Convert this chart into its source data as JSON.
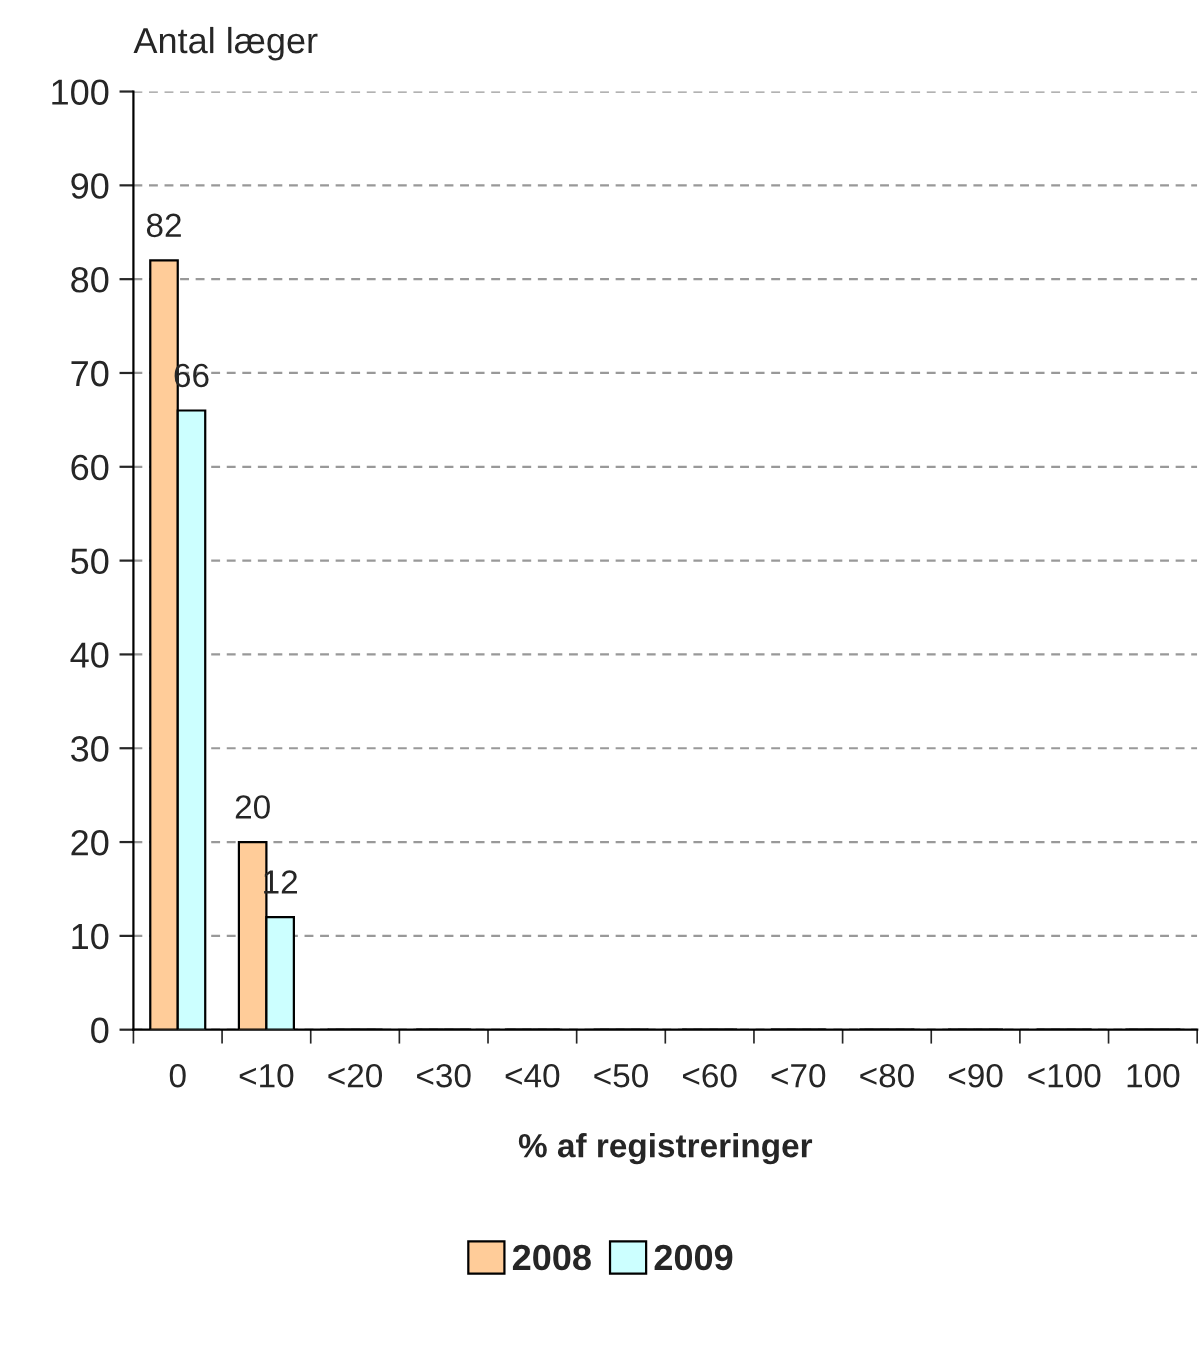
{
  "chart_data": {
    "type": "bar",
    "ylabel": "Antal læger",
    "xlabel": "% af registreringer",
    "categories": [
      "0",
      "<10",
      "<20",
      "<30",
      "<40",
      "<50",
      "<60",
      "<70",
      "<80",
      "<90",
      "<100",
      "100"
    ],
    "series": [
      {
        "name": "2008",
        "color": "#ffcc99",
        "values": [
          82,
          20,
          0,
          0,
          0,
          0,
          0,
          0,
          0,
          0,
          0,
          0
        ],
        "value_labels": [
          "82",
          "20",
          null,
          null,
          null,
          null,
          null,
          null,
          null,
          null,
          null,
          null
        ]
      },
      {
        "name": "2009",
        "color": "#ccffff",
        "values": [
          66,
          12,
          0,
          0,
          0,
          0,
          0,
          0,
          0,
          0,
          0,
          0
        ],
        "value_labels": [
          "66",
          "12",
          null,
          null,
          null,
          null,
          null,
          null,
          null,
          null,
          null,
          null
        ]
      }
    ],
    "ylim": [
      0,
      100
    ],
    "yticks": [
      0,
      10,
      20,
      30,
      40,
      50,
      60,
      70,
      80,
      90,
      100
    ],
    "grid": "y",
    "legend": "bottom"
  }
}
